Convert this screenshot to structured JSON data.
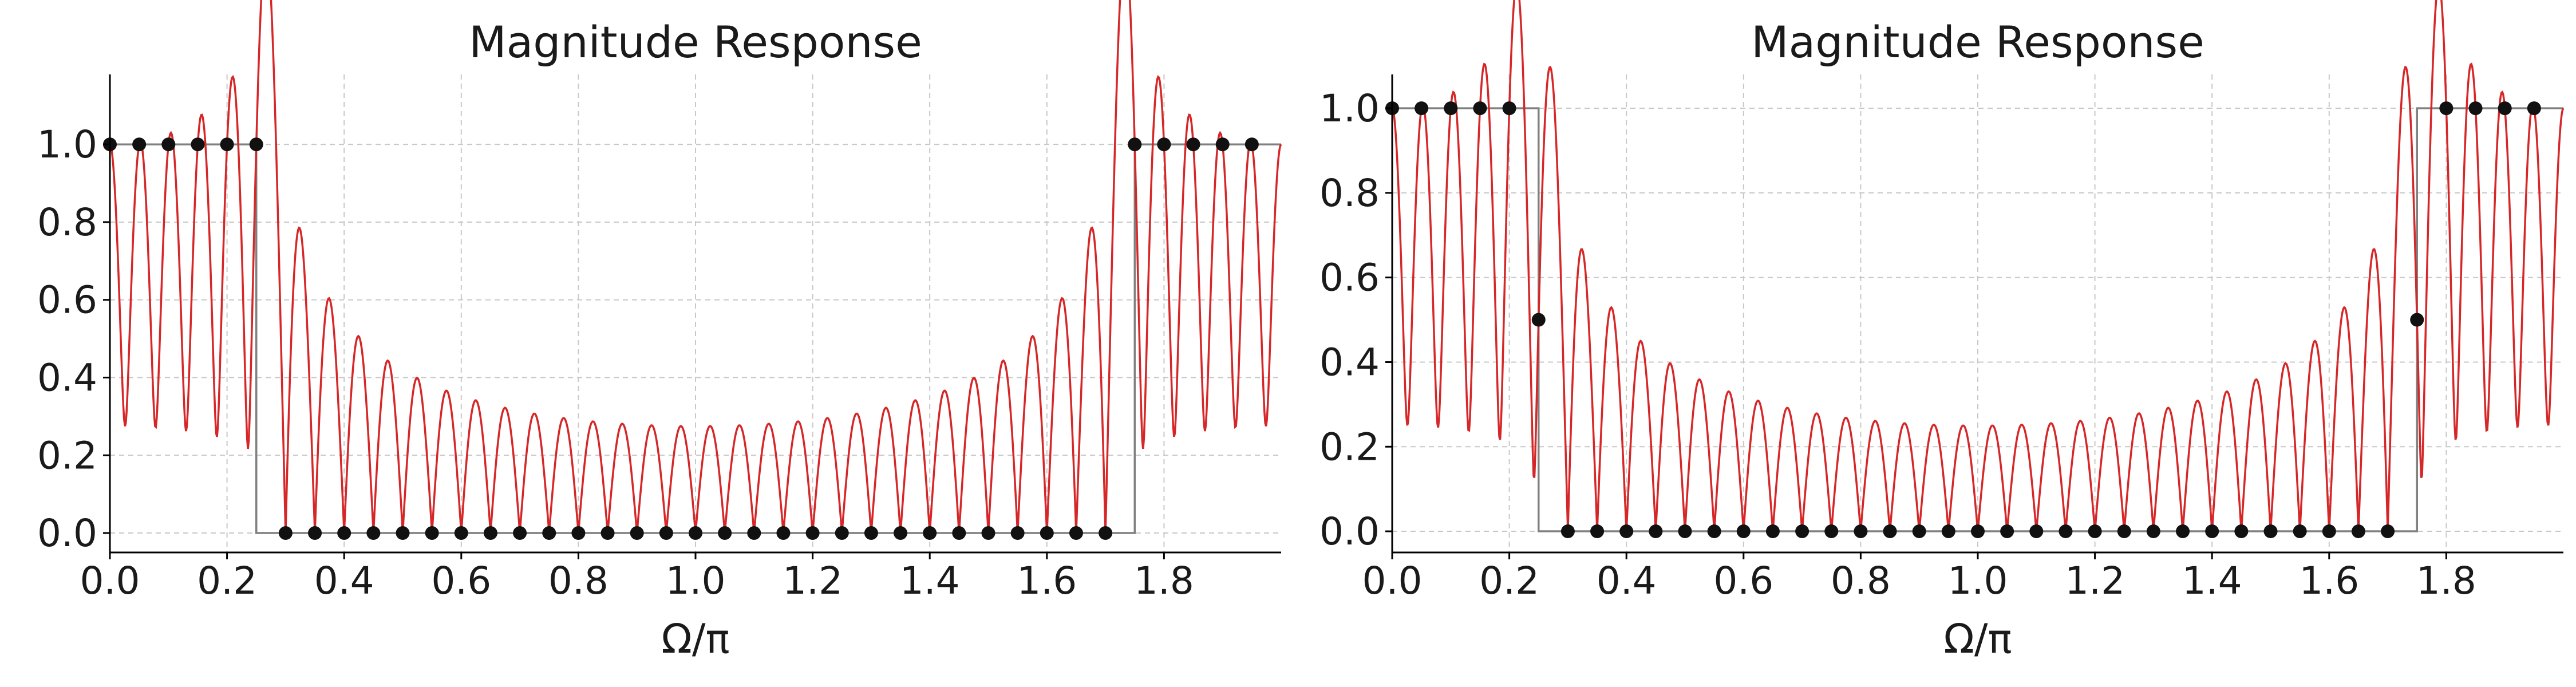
{
  "figure": {
    "background": "#ffffff"
  },
  "chart_data": [
    {
      "type": "line",
      "title": "Magnitude Response",
      "xlabel": "Ω/π",
      "ylabel": "",
      "xlim": [
        0,
        2
      ],
      "ylim": [
        -0.05,
        1.18
      ],
      "grid": true,
      "xticks": [
        0.0,
        0.2,
        0.4,
        0.6,
        0.8,
        1.0,
        1.2,
        1.4,
        1.6,
        1.8
      ],
      "xtick_labels": [
        "0.0",
        "0.2",
        "0.4",
        "0.6",
        "0.8",
        "1.0",
        "1.2",
        "1.4",
        "1.6",
        "1.8"
      ],
      "yticks": [
        0.0,
        0.2,
        0.4,
        0.6,
        0.8,
        1.0
      ],
      "ytick_labels": [
        "0.0",
        "0.2",
        "0.4",
        "0.6",
        "0.8",
        "1.0"
      ],
      "N": 40,
      "samples": [
        1,
        1,
        1,
        1,
        1,
        1,
        0,
        0,
        0,
        0,
        0,
        0,
        0,
        0,
        0,
        0,
        0,
        0,
        0,
        0,
        0,
        0,
        0,
        0,
        0,
        0,
        0,
        0,
        0,
        0,
        0,
        0,
        0,
        0,
        0,
        1,
        1,
        1,
        1,
        1
      ],
      "ideal": {
        "x": [
          0,
          0.25,
          0.25,
          1.75,
          1.75,
          2
        ],
        "y": [
          1,
          1,
          0,
          0,
          1,
          1
        ],
        "color": "#808080"
      },
      "response_color": "#d62728",
      "sample_color": "#111111"
    },
    {
      "type": "line",
      "title": "Magnitude Response",
      "xlabel": "Ω/π",
      "ylabel": "",
      "xlim": [
        0,
        2
      ],
      "ylim": [
        -0.05,
        1.08
      ],
      "grid": true,
      "xticks": [
        0.0,
        0.2,
        0.4,
        0.6,
        0.8,
        1.0,
        1.2,
        1.4,
        1.6,
        1.8
      ],
      "xtick_labels": [
        "0.0",
        "0.2",
        "0.4",
        "0.6",
        "0.8",
        "1.0",
        "1.2",
        "1.4",
        "1.6",
        "1.8"
      ],
      "yticks": [
        0.0,
        0.2,
        0.4,
        0.6,
        0.8,
        1.0
      ],
      "ytick_labels": [
        "0.0",
        "0.2",
        "0.4",
        "0.6",
        "0.8",
        "1.0"
      ],
      "N": 40,
      "samples": [
        1,
        1,
        1,
        1,
        1,
        0.5,
        0,
        0,
        0,
        0,
        0,
        0,
        0,
        0,
        0,
        0,
        0,
        0,
        0,
        0,
        0,
        0,
        0,
        0,
        0,
        0,
        0,
        0,
        0,
        0,
        0,
        0,
        0,
        0,
        0,
        0.5,
        1,
        1,
        1,
        1
      ],
      "ideal": {
        "x": [
          0,
          0.25,
          0.25,
          1.75,
          1.75,
          2
        ],
        "y": [
          1,
          1,
          0,
          0,
          1,
          1
        ],
        "color": "#808080"
      },
      "response_color": "#d62728",
      "sample_color": "#111111"
    }
  ]
}
